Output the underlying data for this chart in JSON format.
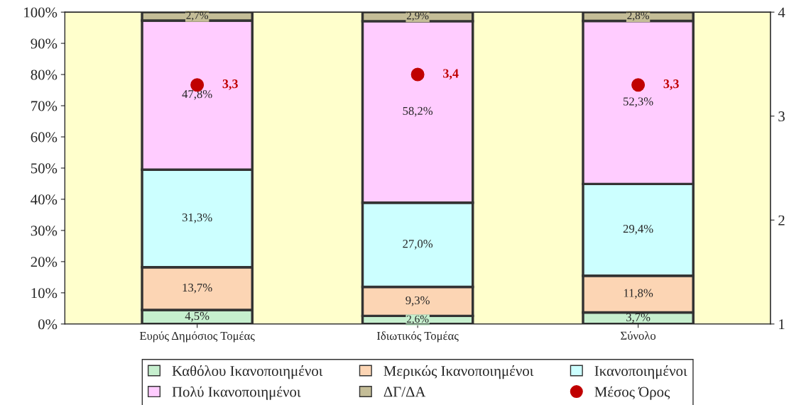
{
  "chart_data": {
    "type": "bar",
    "stacked": true,
    "categories": [
      "Ευρύς Δημόσιος Τομέας",
      "Ιδιωτικός Τομέας",
      "Σύνολο"
    ],
    "series": [
      {
        "name": "Καθόλου Ικανοποιημένοι",
        "color": "#c6efce",
        "values": [
          4.5,
          2.6,
          3.7
        ],
        "value_labels": [
          "4,5%",
          "2,6%",
          "3,7%"
        ]
      },
      {
        "name": "Μερικώς Ικανοποιημένοι",
        "color": "#fcd5b4",
        "values": [
          13.7,
          9.3,
          11.8
        ],
        "value_labels": [
          "13,7%",
          "9,3%",
          "11,8%"
        ]
      },
      {
        "name": "Ικανοποιημένοι",
        "color": "#ccffff",
        "values": [
          31.3,
          27.0,
          29.4
        ],
        "value_labels": [
          "31,3%",
          "27,0%",
          "29,4%"
        ]
      },
      {
        "name": "Πολύ Ικανοποιημένοι",
        "color": "#ffccff",
        "values": [
          47.8,
          58.2,
          52.3
        ],
        "value_labels": [
          "47,8%",
          "58,2%",
          "52,3%"
        ]
      },
      {
        "name": "ΔΓ/ΔΑ",
        "color": "#c4bd97",
        "values": [
          2.7,
          2.9,
          2.8
        ],
        "value_labels": [
          "2,7%",
          "2,9%",
          "2,8%"
        ]
      },
      {
        "name": "Μέσος Όρος",
        "type": "scatter",
        "axis": "y2",
        "marker": "circle",
        "color": "#c00000",
        "values": [
          3.3,
          3.4,
          3.3
        ],
        "value_labels": [
          "3,3",
          "3,4",
          "3,3"
        ]
      }
    ],
    "ylim": [
      0,
      100
    ],
    "yticks": [
      {
        "value": 0,
        "label": "0%"
      },
      {
        "value": 10,
        "label": "10%"
      },
      {
        "value": 20,
        "label": "20%"
      },
      {
        "value": 30,
        "label": "30%"
      },
      {
        "value": 40,
        "label": "40%"
      },
      {
        "value": 50,
        "label": "50%"
      },
      {
        "value": 60,
        "label": "60%"
      },
      {
        "value": 70,
        "label": "70%"
      },
      {
        "value": 80,
        "label": "80%"
      },
      {
        "value": 90,
        "label": "90%"
      },
      {
        "value": 100,
        "label": "100%"
      }
    ],
    "y2lim": [
      1,
      4
    ],
    "y2ticks": [
      1,
      2,
      3,
      4
    ],
    "grid": false,
    "legend": "bottom"
  }
}
